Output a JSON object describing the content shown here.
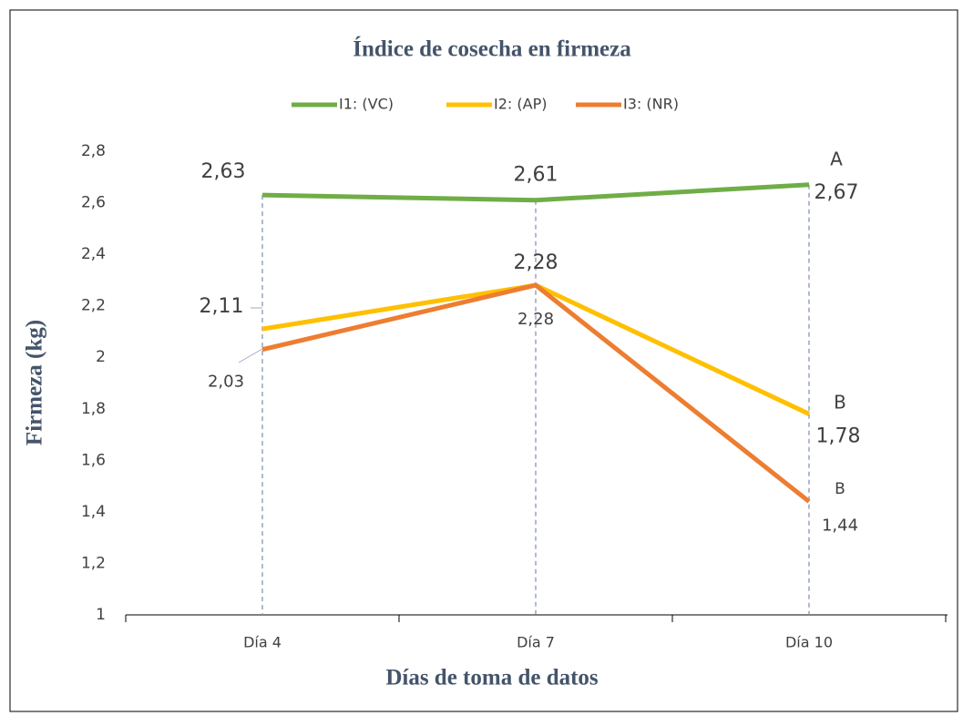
{
  "chart_data": {
    "type": "line",
    "title": "Índice de cosecha en firmeza",
    "x_label": "Días de toma de datos",
    "y_label": "Firmeza (kg)",
    "categories": [
      "Día 4",
      "Día 7",
      "Día 10"
    ],
    "series": [
      {
        "name": "I1: (VC)",
        "color": "#70ad47",
        "values": [
          2.63,
          2.61,
          2.67
        ],
        "value_labels": [
          "2,63",
          "2,61",
          "2,67"
        ]
      },
      {
        "name": "I2: (AP)",
        "color": "#ffc000",
        "values": [
          2.11,
          2.28,
          1.78
        ],
        "value_labels": [
          "2,11",
          "2,28",
          "1,78"
        ]
      },
      {
        "name": "I3: (NR)",
        "color": "#ed7d31",
        "values": [
          2.03,
          2.28,
          1.44
        ],
        "value_labels": [
          "2,03",
          "2,28",
          "1,44"
        ]
      }
    ],
    "annotations": [
      "A",
      "B",
      "B"
    ],
    "ylim": [
      1,
      2.8
    ],
    "yticks": [
      1,
      {
        "value": 1.2,
        "label": "1,2"
      },
      {
        "value": 1.4,
        "label": "1,4"
      },
      {
        "value": 1.6,
        "label": "1,6"
      },
      {
        "value": 1.8,
        "label": "1,8"
      },
      2,
      {
        "value": 2.2,
        "label": "2,2"
      },
      {
        "value": 2.4,
        "label": "2,4"
      },
      {
        "value": 2.6,
        "label": "2,6"
      },
      {
        "value": 2.8,
        "label": "2,8"
      }
    ],
    "legend": "top",
    "drop_lines": true
  }
}
